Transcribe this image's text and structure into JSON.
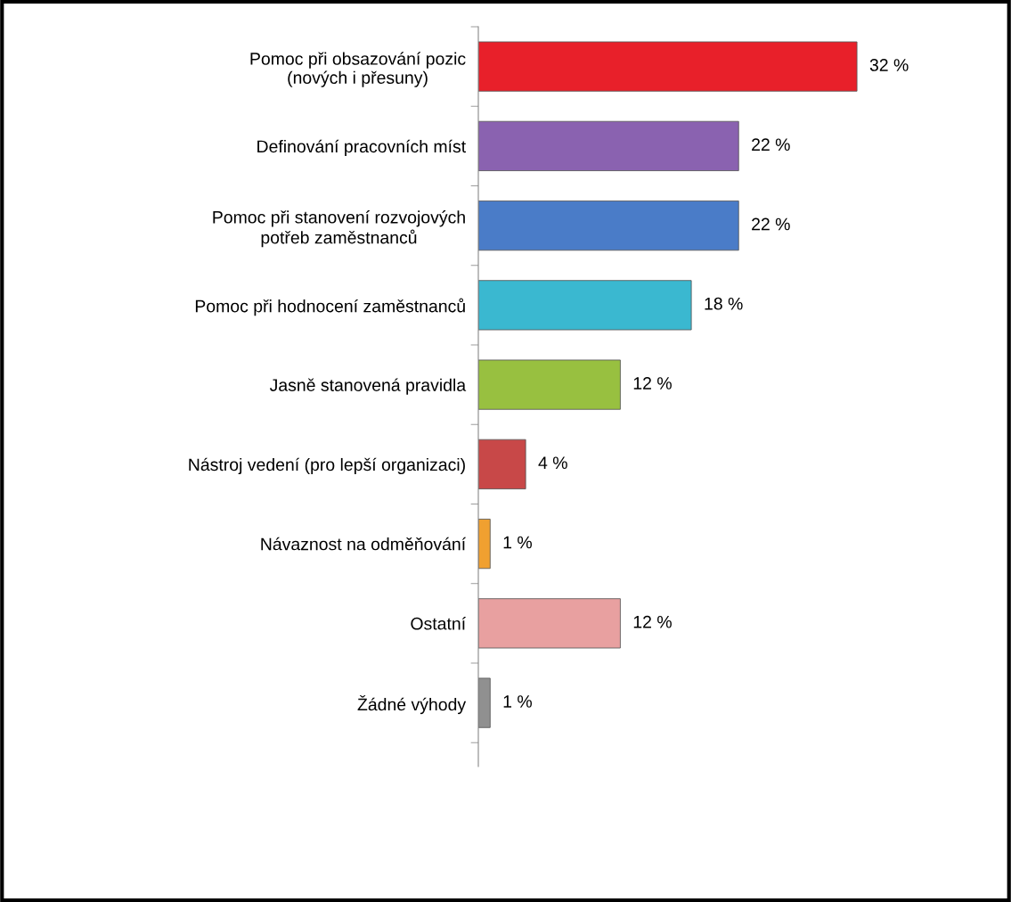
{
  "chart_data": {
    "type": "bar",
    "orientation": "horizontal",
    "categories": [
      "Pomoc při obsazování pozic\n(nových i přesuny)",
      "Definování pracovních míst",
      "Pomoc při stanovení rozvojových\npotřeb zaměstnanců",
      "Pomoc při hodnocení zaměstnanců",
      "Jasně stanovená pravidla",
      "Nástroj vedení (pro lepší organizaci)",
      "Návaznost na odměňování",
      "Ostatní",
      "Žádné výhody"
    ],
    "values": [
      32,
      22,
      22,
      18,
      12,
      4,
      1,
      12,
      1
    ],
    "value_labels": [
      "32 %",
      "22 %",
      "22 %",
      "18 %",
      "12 %",
      "4 %",
      "1 %",
      "12 %",
      "1 %"
    ],
    "colors": [
      "#e8202a",
      "#8a62b0",
      "#4a7cc8",
      "#3ab8d0",
      "#98c040",
      "#c84848",
      "#f0a030",
      "#e8a0a0",
      "#909090"
    ],
    "tick_labels": "y",
    "grid": false,
    "legend": false
  }
}
